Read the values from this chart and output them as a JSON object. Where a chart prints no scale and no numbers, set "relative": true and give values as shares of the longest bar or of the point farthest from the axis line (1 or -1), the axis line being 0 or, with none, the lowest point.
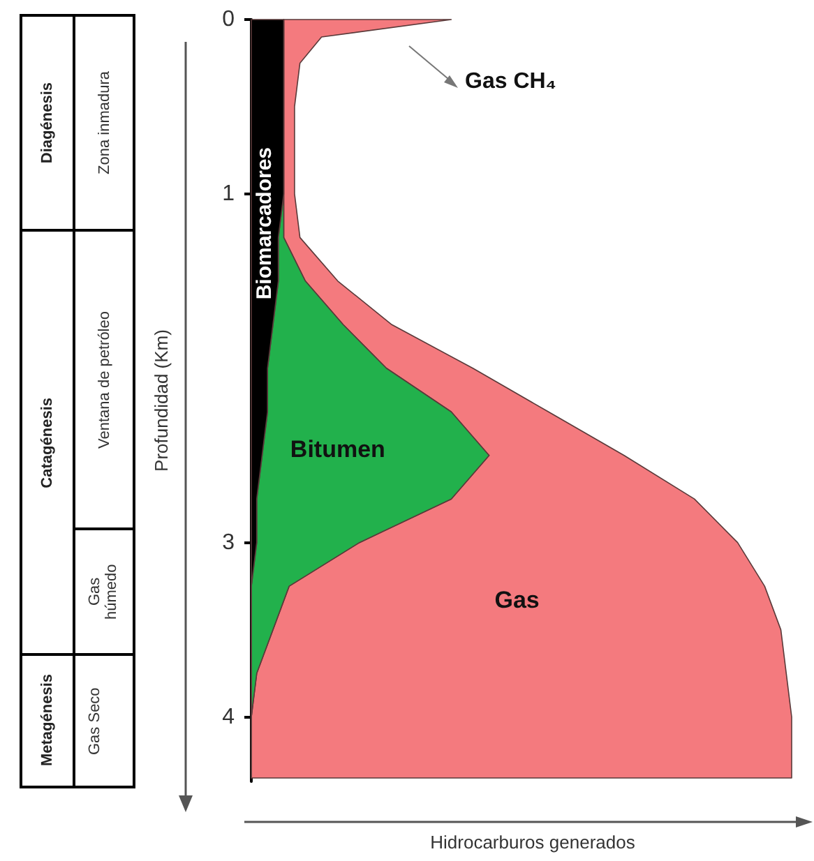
{
  "chart_data": {
    "type": "area",
    "orientation": "horizontal",
    "stacked": true,
    "relative": true,
    "ylabel": "Profundidad (Km)",
    "xlabel": "Hidrocarburos generados",
    "x": [
      0,
      0.1,
      0.25,
      0.5,
      0.75,
      1,
      1.25,
      1.5,
      1.75,
      2,
      2.25,
      2.5,
      2.75,
      3,
      3.25,
      3.5,
      3.75,
      4,
      4.35
    ],
    "ylim": [
      4.37,
      0
    ],
    "yticks": [
      0,
      1,
      3,
      4
    ],
    "series": [
      {
        "name": "Biomarcadores",
        "color": "#000000",
        "values": [
          0.06,
          0.06,
          0.06,
          0.06,
          0.06,
          0.06,
          0.05,
          0.05,
          0.04,
          0.03,
          0.03,
          0.02,
          0.01,
          0.01,
          0,
          0,
          0,
          0,
          0
        ]
      },
      {
        "name": "Bitumen",
        "color": "#22b14c",
        "values": [
          0,
          0,
          0,
          0,
          0,
          0,
          0.01,
          0.05,
          0.13,
          0.22,
          0.34,
          0.42,
          0.36,
          0.19,
          0.07,
          0.04,
          0.01,
          0,
          0
        ]
      },
      {
        "name": "Gas",
        "color": "#f47a7e",
        "values": [
          0.31,
          0.07,
          0.03,
          0.02,
          0.02,
          0.02,
          0.03,
          0.06,
          0.09,
          0.16,
          0.18,
          0.25,
          0.45,
          0.7,
          0.88,
          0.94,
          0.98,
          1,
          1
        ]
      }
    ],
    "annotations": [
      "Diagénesis",
      "Catagénesis",
      "Metagénesis",
      "Zona inmadura",
      "Ventana de petróleo",
      "Gas húmedo",
      "Gas Seco",
      "Gas CH₄"
    ]
  }
}
